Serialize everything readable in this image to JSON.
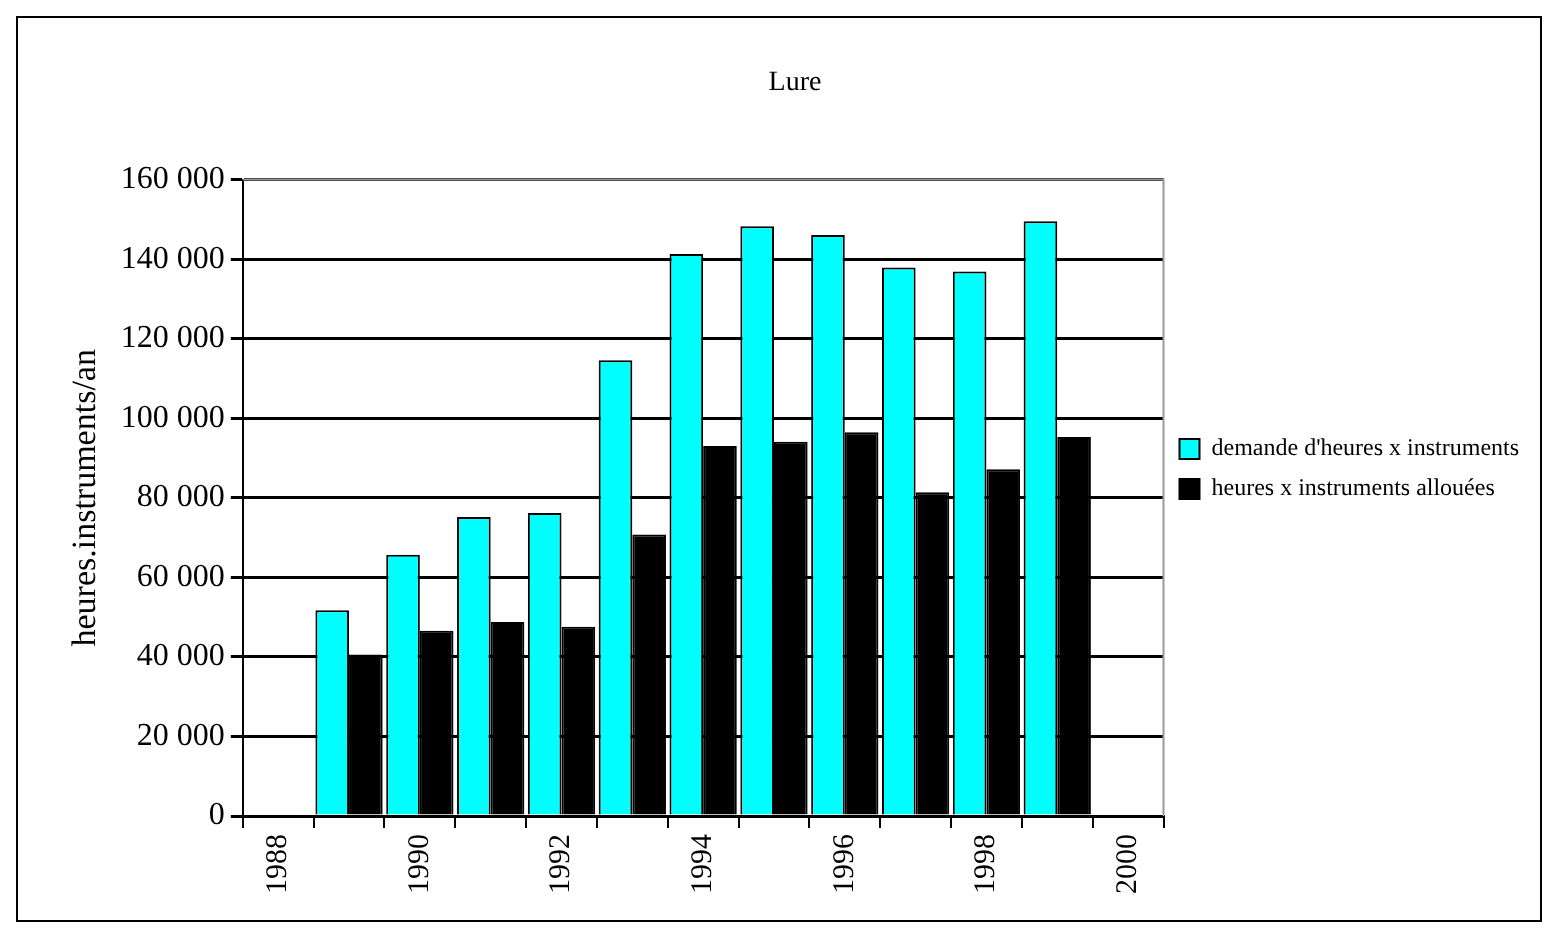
{
  "chart_data": {
    "type": "bar",
    "title": "Lure",
    "ylabel": "heures.instruments/an",
    "categories": [
      "1988",
      null,
      "1990",
      null,
      "1992",
      null,
      "1994",
      null,
      "1996",
      null,
      "1998",
      null,
      "2000"
    ],
    "series": [
      {
        "name": "demande d'heures x instruments",
        "color": "#00ffff",
        "values": [
          null,
          51700,
          65700,
          75200,
          76200,
          114600,
          141300,
          148300,
          146100,
          137900,
          136900,
          149500,
          null
        ]
      },
      {
        "name": "heures x instruments allouées",
        "color": "#000000",
        "values": [
          null,
          40600,
          46600,
          48800,
          47600,
          70800,
          93000,
          94100,
          96500,
          81400,
          87200,
          95300,
          null
        ]
      }
    ],
    "ylim": [
      0,
      160000
    ],
    "yticks": [
      {
        "value": 0,
        "label": "0"
      },
      {
        "value": 20000,
        "label": "20 000"
      },
      {
        "value": 40000,
        "label": "40 000"
      },
      {
        "value": 60000,
        "label": "60 000"
      },
      {
        "value": 80000,
        "label": "80 000"
      },
      {
        "value": 100000,
        "label": "100 000"
      },
      {
        "value": 120000,
        "label": "120 000"
      },
      {
        "value": 140000,
        "label": "140 000"
      },
      {
        "value": 160000,
        "label": "160 000"
      }
    ],
    "grid": "y",
    "legend": "right"
  }
}
